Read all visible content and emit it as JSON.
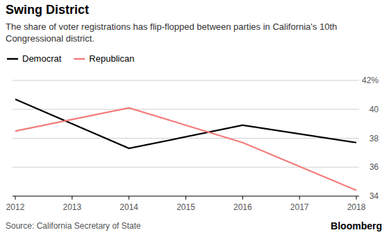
{
  "chart_data": {
    "type": "line",
    "title": "Swing District",
    "subtitle": "The share of voter registrations has flip-flopped between parties in California's 10th Congressional district.",
    "source": "Source: California Secretary of State",
    "credit": "Bloomberg",
    "x": [
      2012,
      2014,
      2016,
      2018
    ],
    "series": [
      {
        "name": "Democrat",
        "color": "#000000",
        "values": [
          40.7,
          37.3,
          38.9,
          37.7
        ]
      },
      {
        "name": "Republican",
        "color": "#f47b7b",
        "values": [
          38.5,
          40.1,
          37.7,
          34.4
        ]
      }
    ],
    "xlim": [
      2012,
      2018
    ],
    "xticks": [
      2012,
      2013,
      2014,
      2015,
      2016,
      2017,
      2018
    ],
    "ylim": [
      34,
      42
    ],
    "yticks": [
      34,
      36,
      38,
      40,
      {
        "value": 42,
        "label": "42%"
      }
    ],
    "grid": true,
    "legend": "top-left"
  }
}
